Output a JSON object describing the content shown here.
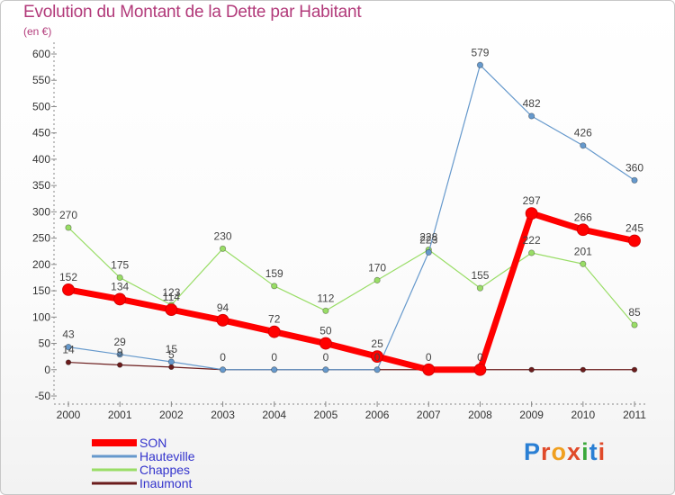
{
  "header": {
    "title": "Evolution du Montant de la Dette par Habitant",
    "subtitle": "(en €)"
  },
  "logo": {
    "text": "Proxiti"
  },
  "chart_data": {
    "type": "line",
    "title": "Evolution du Montant de la Dette par Habitant",
    "subtitle": "(en €)",
    "xlabel": "",
    "ylabel": "",
    "categories": [
      "2000",
      "2001",
      "2002",
      "2003",
      "2004",
      "2005",
      "2006",
      "2007",
      "2008",
      "2009",
      "2010",
      "2011"
    ],
    "ylim": [
      -50,
      600
    ],
    "yticks": [
      -50,
      0,
      50,
      100,
      150,
      200,
      250,
      300,
      350,
      400,
      450,
      500,
      550,
      600
    ],
    "grid": false,
    "legend_position": "bottom-left",
    "series": [
      {
        "name": "Inaumont",
        "color": "#6b1c1c",
        "width": 1.2,
        "marker": 2.8,
        "values": [
          14,
          9,
          5,
          0,
          0,
          0,
          0,
          0,
          0,
          0,
          0,
          0
        ],
        "labels": [
          true,
          true,
          true,
          false,
          false,
          false,
          false,
          false,
          false,
          false,
          false,
          false
        ]
      },
      {
        "name": "Chappes",
        "color": "#99dd66",
        "width": 1.2,
        "marker": 3.2,
        "values": [
          270,
          175,
          123,
          230,
          159,
          112,
          170,
          228,
          155,
          222,
          201,
          85
        ],
        "labels": [
          true,
          true,
          true,
          true,
          true,
          true,
          true,
          true,
          true,
          true,
          true,
          true
        ]
      },
      {
        "name": "Hauteville",
        "color": "#6699cc",
        "width": 1.2,
        "marker": 3.2,
        "values": [
          43,
          29,
          15,
          0,
          0,
          0,
          0,
          223,
          579,
          482,
          426,
          360
        ],
        "labels": [
          true,
          true,
          true,
          true,
          true,
          true,
          true,
          true,
          true,
          true,
          true,
          true
        ]
      },
      {
        "name": "SON",
        "color": "#ff0000",
        "width": 7,
        "marker": 6.5,
        "values": [
          152,
          134,
          114,
          94,
          72,
          50,
          25,
          0,
          0,
          297,
          266,
          245
        ],
        "labels": [
          true,
          true,
          true,
          true,
          true,
          true,
          true,
          true,
          true,
          true,
          true,
          true
        ]
      }
    ],
    "legend": [
      {
        "name": "SON",
        "color": "#ff0000",
        "thickness": 8
      },
      {
        "name": "Hauteville",
        "color": "#6699cc",
        "thickness": 3
      },
      {
        "name": "Chappes",
        "color": "#99dd66",
        "thickness": 3
      },
      {
        "name": "Inaumont",
        "color": "#6b1c1c",
        "thickness": 3
      }
    ]
  }
}
